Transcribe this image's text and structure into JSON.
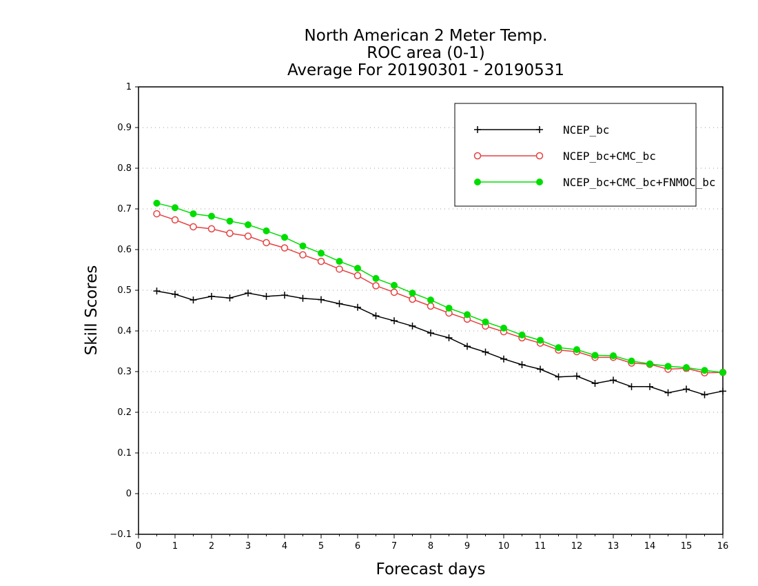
{
  "chart_data": {
    "type": "line",
    "title": [
      "North American 2 Meter Temp.",
      "ROC area (0-1)",
      "Average For 20190301 - 20190531"
    ],
    "xlabel": "Forecast days",
    "ylabel": "Skill Scores",
    "xlim": [
      0,
      16
    ],
    "ylim": [
      -0.1,
      1
    ],
    "xticks": [
      "0",
      "1",
      "2",
      "3",
      "4",
      "5",
      "6",
      "7",
      "8",
      "9",
      "10",
      "11",
      "12",
      "13",
      "14",
      "15",
      "16"
    ],
    "yticks": [
      "−0.1",
      "0",
      "0.1",
      "0.2",
      "0.3",
      "0.4",
      "0.5",
      "0.6",
      "0.7",
      "0.8",
      "0.9",
      "1"
    ],
    "grid": "horizontal-dotted",
    "legend_position": "top-right",
    "x": [
      0.5,
      1,
      1.5,
      2,
      2.5,
      3,
      3.5,
      4,
      4.5,
      5,
      5.5,
      6,
      6.5,
      7,
      7.5,
      8,
      8.5,
      9,
      9.5,
      10,
      10.5,
      11,
      11.5,
      12,
      12.5,
      13,
      13.5,
      14,
      14.5,
      15,
      15.5,
      16
    ],
    "series": [
      {
        "name": "NCEP_bc",
        "color": "#000000",
        "marker": "plus",
        "values": [
          0.498,
          0.49,
          0.476,
          0.485,
          0.481,
          0.493,
          0.485,
          0.488,
          0.48,
          0.477,
          0.467,
          0.458,
          0.437,
          0.425,
          0.412,
          0.395,
          0.383,
          0.362,
          0.348,
          0.331,
          0.317,
          0.306,
          0.287,
          0.289,
          0.271,
          0.279,
          0.263,
          0.263,
          0.248,
          0.257,
          0.243,
          0.252
        ]
      },
      {
        "name": "NCEP_bc+CMC_bc",
        "color": "#e64040",
        "marker": "open-circle",
        "values": [
          0.688,
          0.673,
          0.656,
          0.651,
          0.64,
          0.633,
          0.617,
          0.604,
          0.587,
          0.571,
          0.552,
          0.536,
          0.511,
          0.495,
          0.478,
          0.461,
          0.444,
          0.429,
          0.412,
          0.398,
          0.383,
          0.37,
          0.353,
          0.349,
          0.335,
          0.335,
          0.321,
          0.318,
          0.306,
          0.308,
          0.297,
          0.298
        ]
      },
      {
        "name": "NCEP_bc+CMC_bc+FNMOC_bc",
        "color": "#00dd00",
        "marker": "filled-circle",
        "values": [
          0.714,
          0.703,
          0.688,
          0.682,
          0.67,
          0.661,
          0.646,
          0.63,
          0.609,
          0.591,
          0.571,
          0.554,
          0.529,
          0.512,
          0.493,
          0.476,
          0.456,
          0.44,
          0.422,
          0.407,
          0.39,
          0.377,
          0.359,
          0.354,
          0.34,
          0.339,
          0.326,
          0.319,
          0.313,
          0.31,
          0.303,
          0.298
        ]
      }
    ]
  }
}
